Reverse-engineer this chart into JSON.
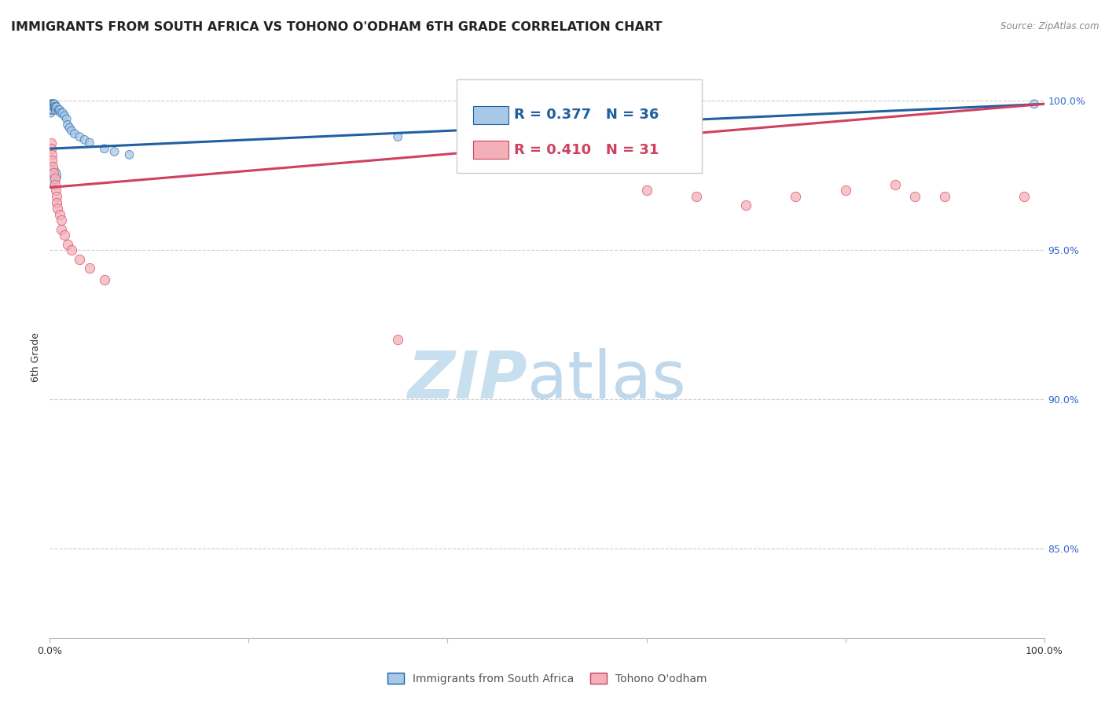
{
  "title": "IMMIGRANTS FROM SOUTH AFRICA VS TOHONO O'ODHAM 6TH GRADE CORRELATION CHART",
  "source": "Source: ZipAtlas.com",
  "ylabel": "6th Grade",
  "ylabel_right_ticks": [
    "100.0%",
    "95.0%",
    "90.0%",
    "85.0%"
  ],
  "ylabel_right_vals": [
    1.0,
    0.95,
    0.9,
    0.85
  ],
  "legend_blue_label": "R = 0.377   N = 36",
  "legend_pink_label": "R = 0.410   N = 31",
  "bottom_legend_blue": "Immigrants from South Africa",
  "bottom_legend_pink": "Tohono O'odham",
  "blue_scatter": [
    [
      0.001,
      0.999
    ],
    [
      0.001,
      0.998
    ],
    [
      0.001,
      0.997
    ],
    [
      0.001,
      0.996
    ],
    [
      0.002,
      0.999
    ],
    [
      0.002,
      0.998
    ],
    [
      0.002,
      0.997
    ],
    [
      0.003,
      0.999
    ],
    [
      0.003,
      0.998
    ],
    [
      0.003,
      0.997
    ],
    [
      0.004,
      0.999
    ],
    [
      0.004,
      0.998
    ],
    [
      0.005,
      0.999
    ],
    [
      0.005,
      0.998
    ],
    [
      0.006,
      0.998
    ],
    [
      0.006,
      0.997
    ],
    [
      0.007,
      0.998
    ],
    [
      0.009,
      0.997
    ],
    [
      0.01,
      0.997
    ],
    [
      0.011,
      0.996
    ],
    [
      0.013,
      0.996
    ],
    [
      0.015,
      0.995
    ],
    [
      0.017,
      0.994
    ],
    [
      0.018,
      0.992
    ],
    [
      0.02,
      0.991
    ],
    [
      0.022,
      0.99
    ],
    [
      0.025,
      0.989
    ],
    [
      0.03,
      0.988
    ],
    [
      0.035,
      0.987
    ],
    [
      0.04,
      0.986
    ],
    [
      0.055,
      0.984
    ],
    [
      0.065,
      0.983
    ],
    [
      0.08,
      0.982
    ],
    [
      0.35,
      0.988
    ],
    [
      0.001,
      0.975
    ],
    [
      0.99,
      0.999
    ]
  ],
  "blue_scatter_sizes": [
    60,
    60,
    60,
    60,
    60,
    60,
    60,
    60,
    60,
    60,
    60,
    60,
    60,
    60,
    60,
    60,
    60,
    60,
    60,
    60,
    60,
    60,
    60,
    60,
    60,
    60,
    60,
    60,
    60,
    60,
    60,
    60,
    60,
    60,
    350,
    60
  ],
  "pink_scatter": [
    [
      0.001,
      0.986
    ],
    [
      0.001,
      0.984
    ],
    [
      0.002,
      0.982
    ],
    [
      0.002,
      0.98
    ],
    [
      0.003,
      0.978
    ],
    [
      0.004,
      0.976
    ],
    [
      0.005,
      0.974
    ],
    [
      0.005,
      0.972
    ],
    [
      0.006,
      0.97
    ],
    [
      0.007,
      0.968
    ],
    [
      0.007,
      0.966
    ],
    [
      0.008,
      0.964
    ],
    [
      0.01,
      0.962
    ],
    [
      0.012,
      0.96
    ],
    [
      0.012,
      0.957
    ],
    [
      0.015,
      0.955
    ],
    [
      0.018,
      0.952
    ],
    [
      0.022,
      0.95
    ],
    [
      0.03,
      0.947
    ],
    [
      0.04,
      0.944
    ],
    [
      0.055,
      0.94
    ],
    [
      0.35,
      0.92
    ],
    [
      0.6,
      0.97
    ],
    [
      0.65,
      0.968
    ],
    [
      0.7,
      0.965
    ],
    [
      0.75,
      0.968
    ],
    [
      0.8,
      0.97
    ],
    [
      0.85,
      0.972
    ],
    [
      0.87,
      0.968
    ],
    [
      0.9,
      0.968
    ],
    [
      0.98,
      0.968
    ]
  ],
  "blue_line_x": [
    0.0,
    1.0
  ],
  "blue_line_y": [
    0.984,
    0.999
  ],
  "pink_line_x": [
    0.0,
    1.0
  ],
  "pink_line_y": [
    0.971,
    0.999
  ],
  "xlim": [
    0.0,
    1.0
  ],
  "ylim": [
    0.82,
    1.008
  ],
  "blue_color": "#a8c8e8",
  "blue_line_color": "#2060a0",
  "pink_color": "#f4b0b8",
  "pink_line_color": "#d04060",
  "grid_color": "#cccccc",
  "title_fontsize": 11.5,
  "axis_label_fontsize": 9,
  "tick_fontsize": 9,
  "watermark_zip_color": "#c8dff0",
  "watermark_atlas_color": "#c0d8ec",
  "watermark_fontsize": 60
}
